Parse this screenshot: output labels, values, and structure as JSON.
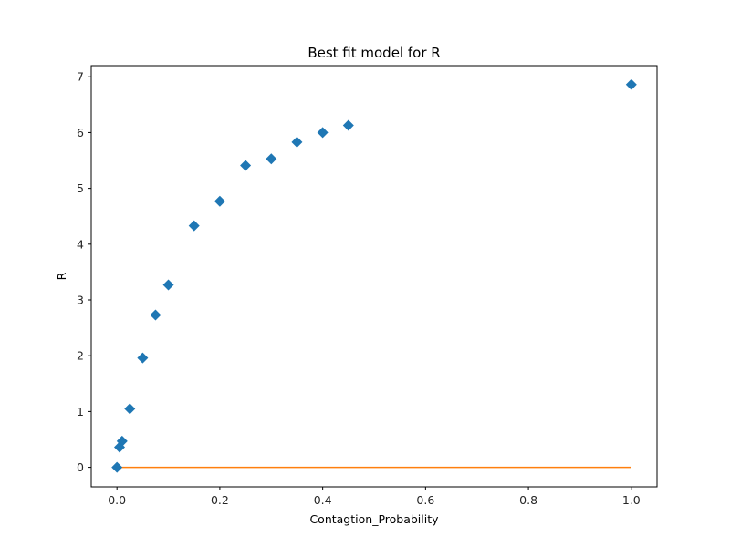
{
  "chart_data": {
    "type": "scatter",
    "title": "Best fit model for R",
    "xlabel": "Contagtion_Probability",
    "ylabel": "R",
    "xlim": [
      -0.05,
      1.05
    ],
    "ylim": [
      -0.35,
      7.2
    ],
    "xticks": [
      "0.0",
      "0.2",
      "0.4",
      "0.6",
      "0.8",
      "1.0"
    ],
    "xtick_values": [
      0,
      0.2,
      0.4,
      0.6,
      0.8,
      1.0
    ],
    "yticks": [
      "0",
      "1",
      "2",
      "3",
      "4",
      "5",
      "6",
      "7"
    ],
    "ytick_values": [
      0,
      1,
      2,
      3,
      4,
      5,
      6,
      7
    ],
    "grid": false,
    "series": [
      {
        "type": "scatter",
        "marker": "diamond",
        "color": "#1f77b4",
        "x": [
          0,
          0.005,
          0.01,
          0.025,
          0.05,
          0.075,
          0.1,
          0.15,
          0.2,
          0.25,
          0.3,
          0.35,
          0.4,
          0.45,
          1.0
        ],
        "y": [
          0.0,
          0.36,
          0.47,
          1.05,
          1.96,
          2.73,
          3.27,
          4.33,
          4.77,
          5.41,
          5.53,
          5.83,
          6.0,
          6.13,
          6.86
        ]
      },
      {
        "type": "line",
        "color": "#ff7f0e",
        "x": [
          0,
          1.0
        ],
        "y": [
          0,
          0
        ]
      }
    ]
  }
}
